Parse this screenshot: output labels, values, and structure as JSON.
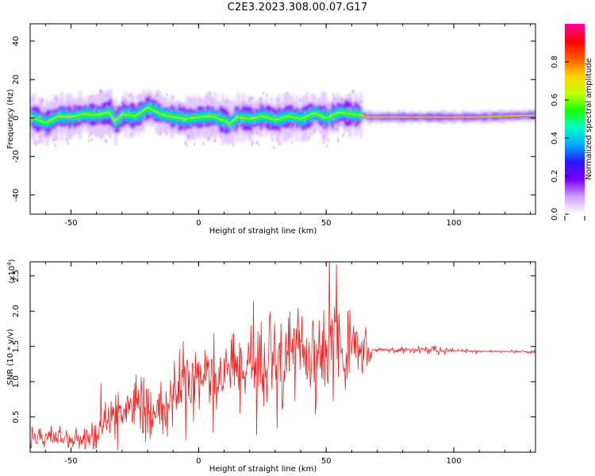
{
  "title": "C2E3.2023.308.00.07.G17",
  "colors": {
    "snr_line": "#ee2222",
    "axis": "#000000",
    "colormap": [
      "#ffffff",
      "#cfa2ff",
      "#7a00ff",
      "#2a16ff",
      "#00a8ff",
      "#00ffc8",
      "#19ff00",
      "#c8ff00",
      "#ffd000",
      "#ff5800",
      "#ff0000",
      "#ff00a8"
    ]
  },
  "chart_data": [
    {
      "type": "heatmap",
      "xlabel": "Height of straight line (km)",
      "ylabel": "Frequency (Hz)",
      "xlim": [
        -66,
        132
      ],
      "ylim": [
        -50,
        49
      ],
      "xticks": [
        -50,
        0,
        50,
        100
      ],
      "yticks": [
        -40,
        -20,
        0,
        20,
        40
      ],
      "colorbar": {
        "label": "Normalized spectral amplitude",
        "range": [
          0.0,
          1.0
        ],
        "ticks": [
          0.0,
          0.2,
          0.4,
          0.6,
          0.8
        ]
      },
      "ridge": {
        "x": [
          -66,
          -60,
          -55,
          -50,
          -45,
          -40,
          -35,
          -33,
          -30,
          -25,
          -20,
          -15,
          -10,
          -5,
          0,
          5,
          10,
          12,
          15,
          20,
          25,
          30,
          35,
          40,
          45,
          50,
          55,
          60,
          64,
          66,
          80,
          95,
          100,
          110,
          120,
          132
        ],
        "y": [
          0.5,
          -2.5,
          1.0,
          0.5,
          2.0,
          1.5,
          3.0,
          -2.0,
          2.0,
          1.0,
          5.5,
          2.0,
          0.5,
          -0.5,
          0.5,
          1.0,
          -1.5,
          -3.0,
          0.5,
          -0.5,
          1.0,
          -1.0,
          1.0,
          -0.5,
          2.5,
          0.0,
          3.0,
          2.0,
          1.5,
          0.5,
          0.5,
          0.5,
          0.5,
          0.5,
          1.0,
          1.5
        ]
      },
      "spread_hz": [
        {
          "x": [
            -66,
            64
          ],
          "core": 3,
          "halo": 10
        },
        {
          "x": [
            64,
            132
          ],
          "core": 1,
          "halo": 3
        }
      ]
    },
    {
      "type": "line",
      "xlabel": "Height of straight line (km)",
      "ylabel": "SNR (10 * v/v)",
      "y_scale_label": "(x10",
      "y_scale_exponent": "4",
      "xlim": [
        -66,
        132
      ],
      "ylim": [
        0,
        2.7
      ],
      "xticks": [
        -50,
        0,
        50,
        100
      ],
      "yticks": [
        0.5,
        1.0,
        1.5,
        2.0,
        2.5
      ],
      "y_unit_multiplier": 10000,
      "envelope": {
        "x": [
          -66,
          -50,
          -42,
          -35,
          -25,
          -15,
          -8,
          0,
          10,
          20,
          30,
          40,
          50,
          55,
          60,
          65,
          67,
          68,
          80,
          90,
          95,
          100,
          110,
          120,
          132
        ],
        "mean": [
          0.25,
          0.15,
          0.2,
          0.45,
          0.65,
          0.6,
          0.9,
          1.0,
          1.1,
          1.2,
          1.3,
          1.35,
          1.4,
          1.45,
          1.45,
          1.45,
          1.4,
          1.45,
          1.45,
          1.45,
          1.43,
          1.44,
          1.43,
          1.43,
          1.42
        ],
        "amplitude": [
          0.2,
          0.15,
          0.3,
          0.45,
          0.45,
          0.5,
          0.65,
          0.55,
          0.6,
          0.65,
          0.75,
          0.8,
          0.85,
          0.8,
          0.75,
          0.5,
          0.2,
          0.04,
          0.04,
          0.06,
          0.09,
          0.03,
          0.02,
          0.02,
          0.03
        ]
      }
    }
  ]
}
